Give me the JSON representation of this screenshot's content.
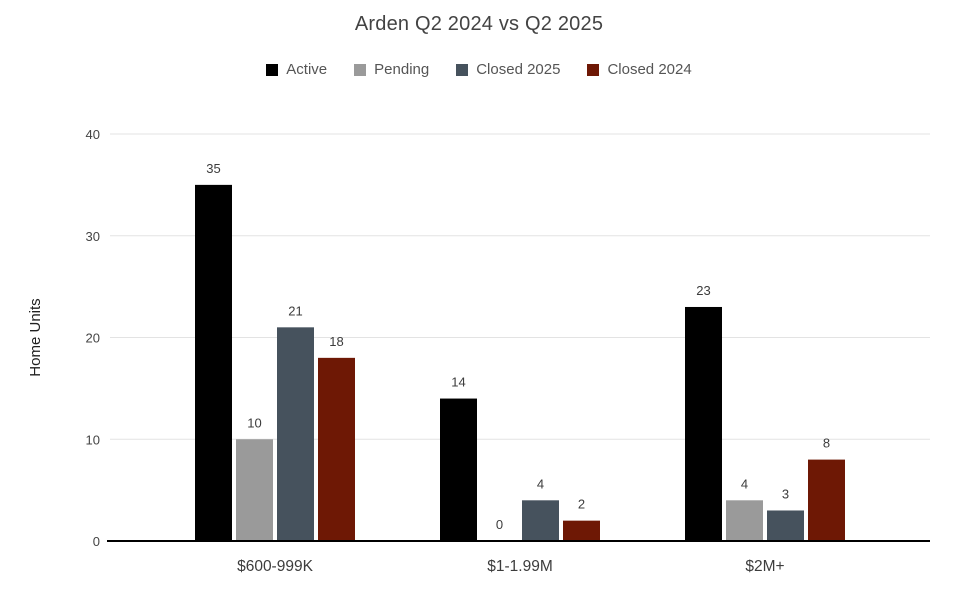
{
  "title": "Arden Q2 2024 vs Q2 2025",
  "chart_data": {
    "type": "bar",
    "title": "Arden Q2 2024 vs Q2 2025",
    "xlabel": "",
    "ylabel": "Home Units",
    "categories": [
      "$600-999K",
      "$1-1.99M",
      "$2M+"
    ],
    "series": [
      {
        "name": "Active",
        "color": "#000000",
        "values": [
          35,
          14,
          23
        ]
      },
      {
        "name": "Pending",
        "color": "#9a9a9a",
        "values": [
          10,
          0,
          4
        ]
      },
      {
        "name": "Closed 2025",
        "color": "#46525d",
        "values": [
          21,
          4,
          3
        ]
      },
      {
        "name": "Closed 2024",
        "color": "#6e1805",
        "values": [
          18,
          2,
          8
        ]
      }
    ],
    "ylim": [
      0,
      40
    ],
    "yticks": [
      0,
      10,
      20,
      30,
      40
    ],
    "grid": true,
    "value_labels": true,
    "legend_position": "top"
  },
  "style": {
    "grid_color": "#e3e3e3",
    "axis_color": "#000000",
    "tick_label_color": "#444444",
    "category_label_color": "#3c3c3c",
    "value_label_color": "#3c3c3c",
    "ylabel_color": "#212121"
  }
}
